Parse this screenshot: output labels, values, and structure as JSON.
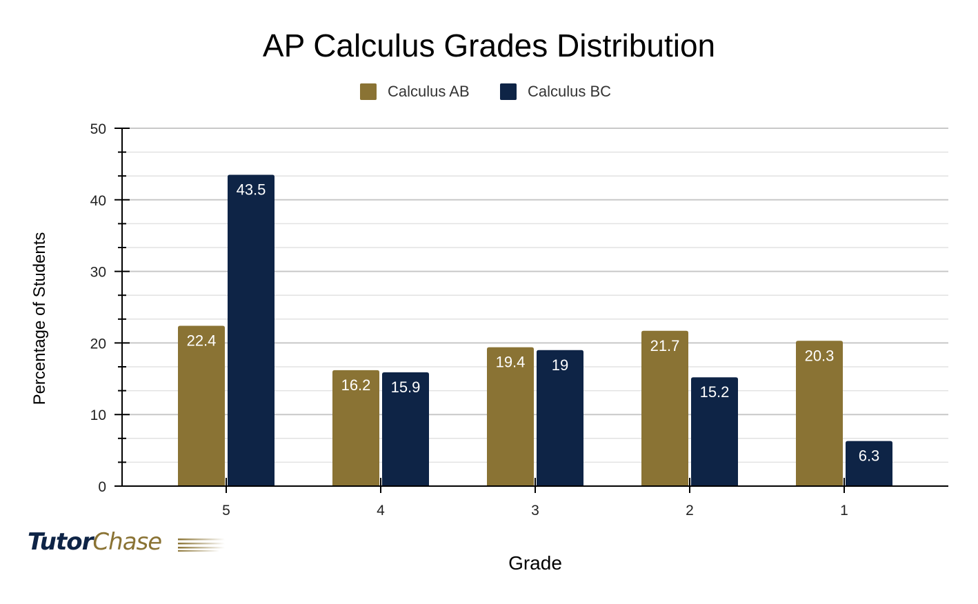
{
  "chart_data": {
    "type": "bar",
    "title": "AP Calculus Grades Distribution",
    "xlabel": "Grade",
    "ylabel": "Percentage of Students",
    "categories": [
      "5",
      "4",
      "3",
      "2",
      "1"
    ],
    "series": [
      {
        "name": "Calculus AB",
        "color": "#8a7334",
        "values": [
          22.4,
          16.2,
          19.4,
          21.7,
          20.3
        ]
      },
      {
        "name": "Calculus BC",
        "color": "#0e2446",
        "values": [
          43.5,
          15.9,
          19,
          15.2,
          6.3
        ]
      }
    ],
    "ylim": [
      0,
      50
    ],
    "yticks": [
      0,
      10,
      20,
      30,
      40,
      50
    ],
    "grid": true,
    "legend": "top-center",
    "data_labels": true
  },
  "logo": {
    "part1": "Tutor",
    "part2": "Chase"
  }
}
